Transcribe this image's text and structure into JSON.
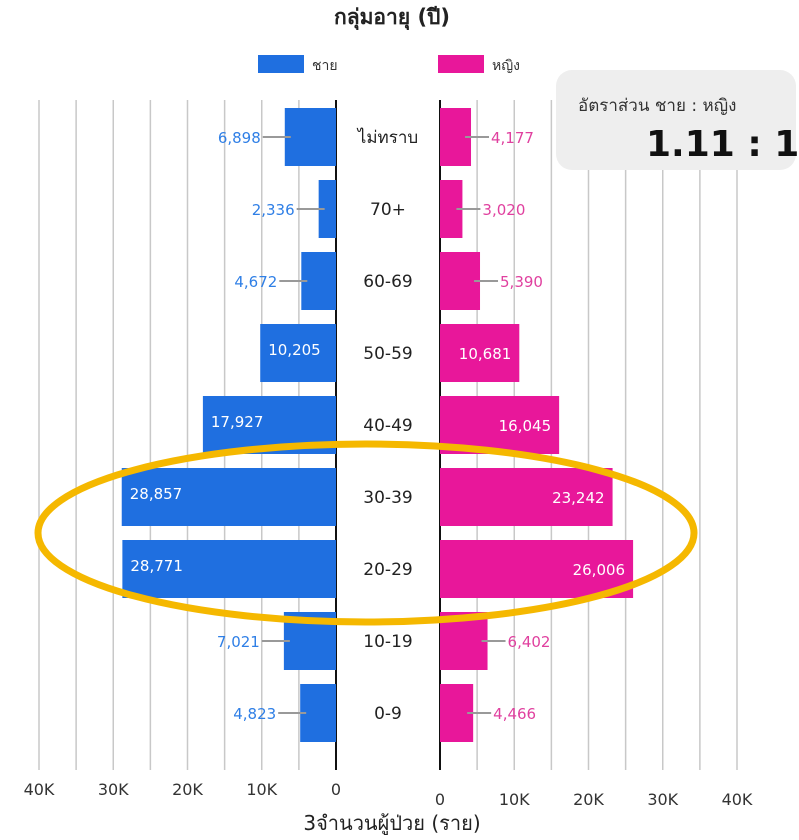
{
  "chart_data": {
    "type": "bar",
    "title": "กลุ่มอายุ (ปี)",
    "xlabel": "3จำนวนผู้ป่วย (ราย)",
    "categories": [
      "ไม่ทราบ",
      "70+",
      "60-69",
      "50-59",
      "40-49",
      "30-39",
      "20-29",
      "10-19",
      "0-9"
    ],
    "series": [
      {
        "name": "ชาย",
        "color": "#1f6fe0",
        "values": [
          6898,
          2336,
          4672,
          10205,
          17927,
          28857,
          28771,
          7021,
          4823
        ],
        "labels": [
          "6,898",
          "2,336",
          "4,672",
          "10,205",
          "17,927",
          "28,857",
          "28,771",
          "7,021",
          "4,823"
        ]
      },
      {
        "name": "หญิง",
        "color": "#e8179a",
        "values": [
          4177,
          3020,
          5390,
          10681,
          16045,
          23242,
          26006,
          6402,
          4466
        ],
        "labels": [
          "4,177",
          "3,020",
          "5,390",
          "10,681",
          "16,045",
          "23,242",
          "26,006",
          "6,402",
          "4,466"
        ]
      }
    ],
    "left_ticks": [
      "40K",
      "30K",
      "20K",
      "10K",
      "0"
    ],
    "right_ticks": [
      "0",
      "10K",
      "20K",
      "30K",
      "40K"
    ],
    "xlim": [
      0,
      40000
    ],
    "grid": true,
    "legend": "top",
    "highlight": {
      "categories": [
        "30-39",
        "20-29"
      ],
      "color": "#f5b800"
    }
  },
  "ratio_box": {
    "label": "อัตราส่วน ชาย : หญิง",
    "value": "1.11 : 1"
  }
}
